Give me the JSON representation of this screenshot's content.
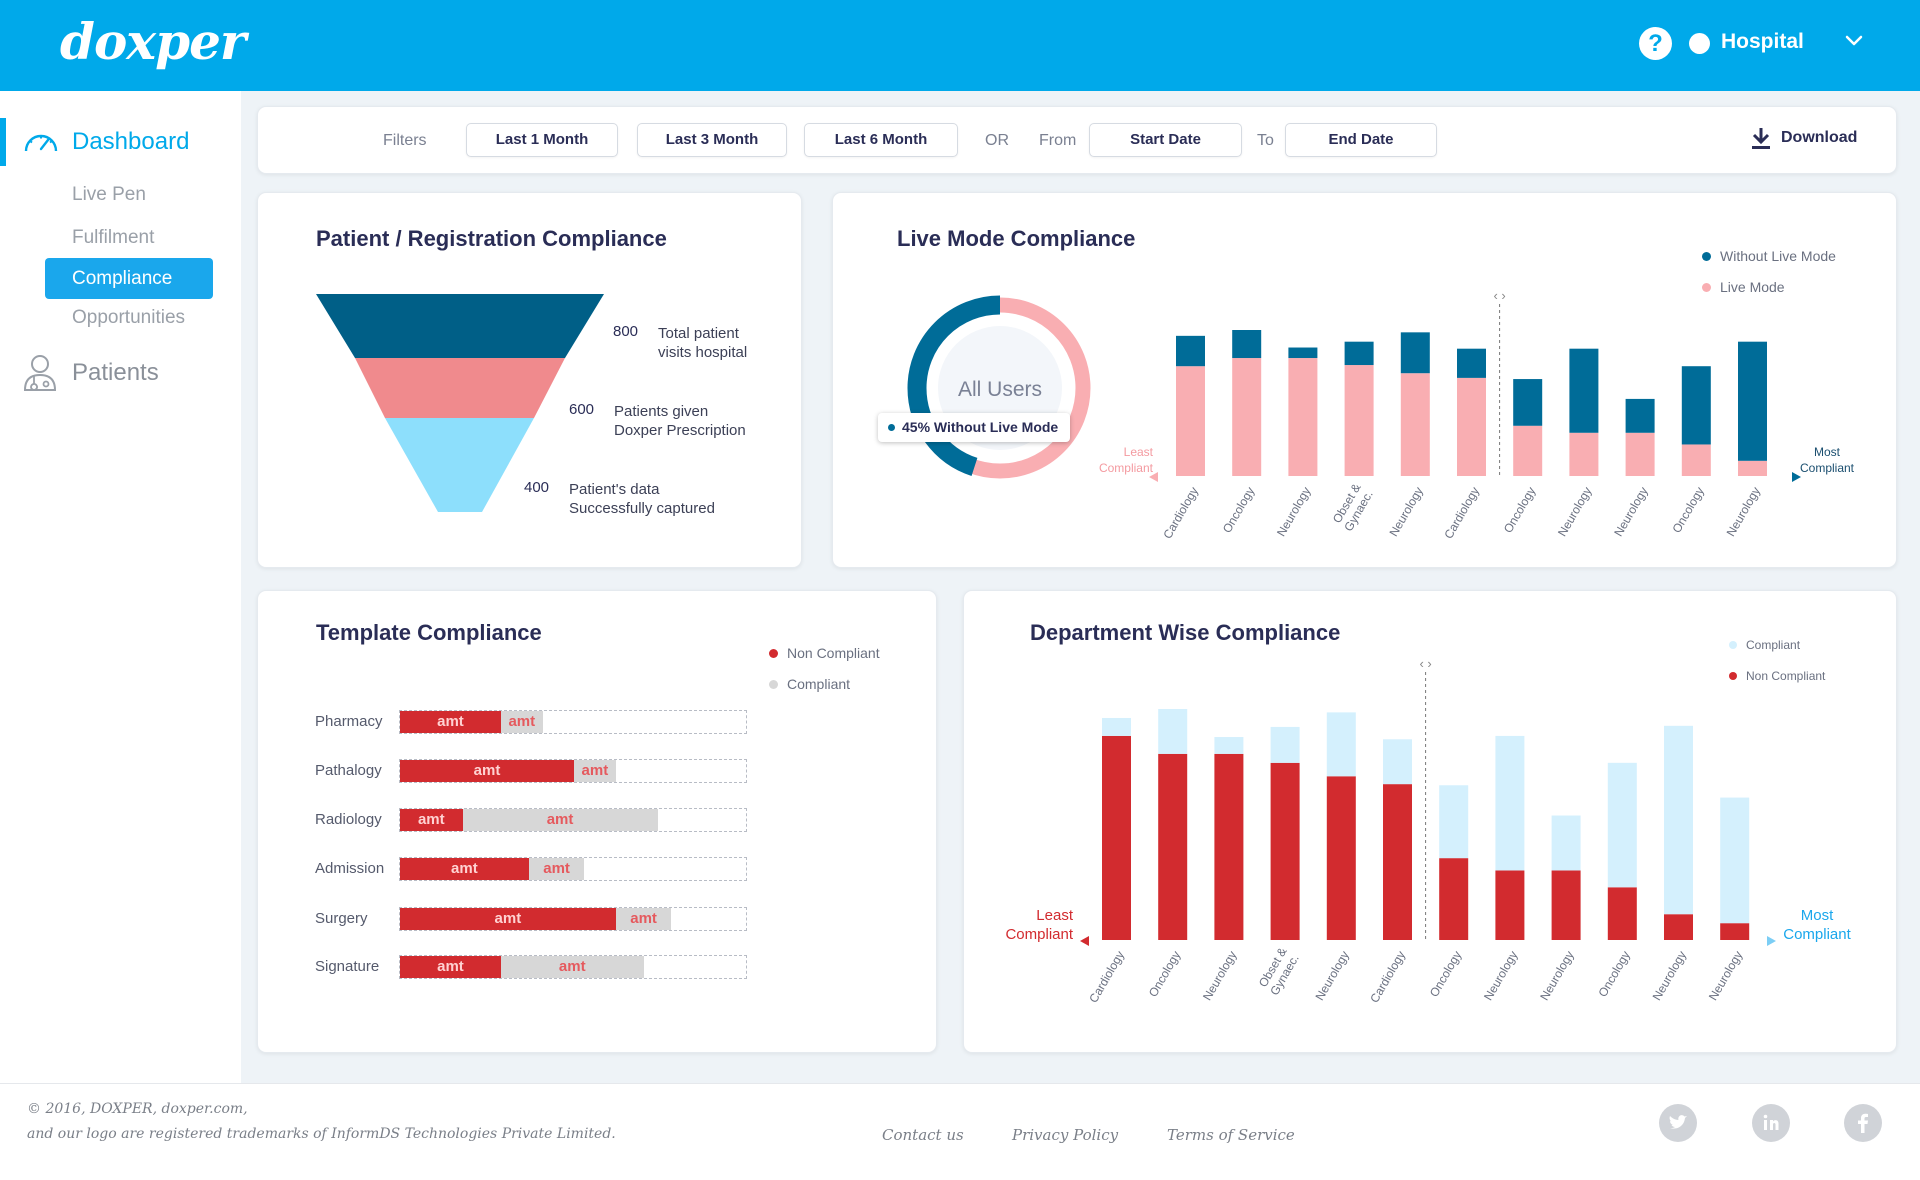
{
  "header": {
    "logo": "doxper",
    "user_label": "Hospital",
    "help_symbol": "?"
  },
  "sidebar": {
    "dashboard": "Dashboard",
    "subitems": [
      "Live Pen",
      "Fulfilment",
      "Compliance",
      "Opportunities"
    ],
    "patients": "Patients"
  },
  "filters": {
    "label": "Filters",
    "last1": "Last 1 Month",
    "last3": "Last 3 Month",
    "last6": "Last 6 Month",
    "or": "OR",
    "from": "From",
    "start": "Start Date",
    "to": "To",
    "end": "End Date",
    "download": "Download"
  },
  "funnel": {
    "title": "Patient / Registration Compliance",
    "rows": [
      {
        "value": "800",
        "line1": "Total patient",
        "line2": "visits hospital"
      },
      {
        "value": "600",
        "line1": "Patients given",
        "line2": "Doxper Prescription"
      },
      {
        "value": "400",
        "line1": "Patient's data",
        "line2": "Successfully captured"
      }
    ],
    "colors": [
      "#005f87",
      "#f08a8d",
      "#8ddffc"
    ]
  },
  "live_mode": {
    "title": "Live Mode Compliance",
    "donut_center": "All Users",
    "donut_badge": "45% Without Live Mode",
    "without_fraction": 0.45,
    "legend": [
      "Without Live Mode",
      "Live Mode"
    ],
    "least": [
      "Least",
      "Compliant"
    ],
    "most": [
      "Most",
      "Compliant"
    ],
    "colors": {
      "without": "#006c98",
      "live": "#f9aeb2"
    },
    "chart_data": {
      "type": "bar",
      "stacked": true,
      "categories": [
        "Cardiology",
        "Oncology",
        "Neurology",
        "Obset & Gynaec.",
        "Neurology",
        "Cardiology",
        "Oncology",
        "Neurology",
        "Neurology",
        "Oncology",
        "Neurology"
      ],
      "series": [
        {
          "name": "Live Mode",
          "values": [
            94,
            101,
            101,
            95,
            88,
            84,
            43,
            37,
            37,
            27,
            13
          ]
        },
        {
          "name": "Without Live Mode",
          "values": [
            26,
            24,
            9,
            20,
            35,
            25,
            40,
            72,
            29,
            67,
            102
          ]
        }
      ],
      "divider_after_index": 5,
      "axis_labels": [
        "Least Compliant",
        "Most Compliant"
      ]
    }
  },
  "template": {
    "title": "Template Compliance",
    "legend": [
      "Non Compliant",
      "Compliant"
    ],
    "bar_label": "amt",
    "colors": {
      "noncompliant": "#d22b2f",
      "compliant": "#d7d7d7"
    },
    "chart_data": {
      "type": "bar",
      "orientation": "horizontal",
      "stacked": true,
      "categories": [
        "Pharmacy",
        "Pathalogy",
        "Radiology",
        "Admission",
        "Surgery",
        "Signature"
      ],
      "series": [
        {
          "name": "Non Compliant",
          "values": [
            29,
            50,
            18,
            37,
            62,
            29
          ]
        },
        {
          "name": "Compliant",
          "values": [
            12,
            12,
            56,
            16,
            16,
            41
          ]
        }
      ],
      "max": 100
    }
  },
  "department": {
    "title": "Department Wise Compliance",
    "legend": [
      "Compliant",
      "Non Compliant"
    ],
    "least": [
      "Least",
      "Compliant"
    ],
    "most": [
      "Most",
      "Compliant"
    ],
    "colors": {
      "compliant": "#d4f0fd",
      "noncompliant": "#d22b2f"
    },
    "chart_data": {
      "type": "bar",
      "stacked": true,
      "categories": [
        "Cardiology",
        "Oncology",
        "Neurology",
        "Obset & Gynaec.",
        "Neurology",
        "Cardiology",
        "Oncology",
        "Neurology",
        "Neurology",
        "Oncology",
        "Neurology",
        "Neurology"
      ],
      "series": [
        {
          "name": "Non Compliant",
          "values": [
            182,
            166,
            166,
            158,
            146,
            139,
            73,
            62,
            62,
            47,
            23,
            15
          ]
        },
        {
          "name": "Compliant",
          "values": [
            16,
            40,
            15,
            32,
            57,
            40,
            65,
            120,
            49,
            111,
            168,
            112
          ]
        }
      ],
      "divider_after_index": 5,
      "axis_labels": [
        "Least Compliant",
        "Most Compliant"
      ]
    }
  },
  "footer": {
    "copy1": "© 2016, DOXPER, doxper.com,",
    "copy2": "and our logo are registered trademarks of InformDS Technologies Private Limited.",
    "links": [
      "Contact us",
      "Privacy Policy",
      "Terms of Service"
    ],
    "social": [
      "twitter-icon",
      "linkedin-icon",
      "facebook-icon"
    ]
  }
}
